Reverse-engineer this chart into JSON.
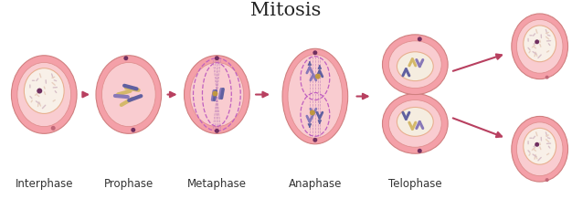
{
  "title": "Mitosis",
  "title_fontsize": 15,
  "stages": [
    "Interphase",
    "Prophase",
    "Metaphase",
    "Anaphase",
    "Telophase"
  ],
  "label_fontsize": 8.5,
  "bg_color": "#ffffff",
  "cell_outer": "#f4a0a8",
  "cell_mid": "#f9ccd0",
  "cell_inner": "#fde8e8",
  "nucleus_cream": "#f5ede0",
  "nucleus_border": "#e8b090",
  "chr_yellow": "#d4b86a",
  "chr_purple": "#8878b8",
  "chr_purple2": "#6060a0",
  "spindle_color": "#b878b8",
  "arrow_color": "#b84060",
  "dot_dark": "#703060",
  "dot_orange": "#d07040",
  "spindle_dot": "#c09840"
}
